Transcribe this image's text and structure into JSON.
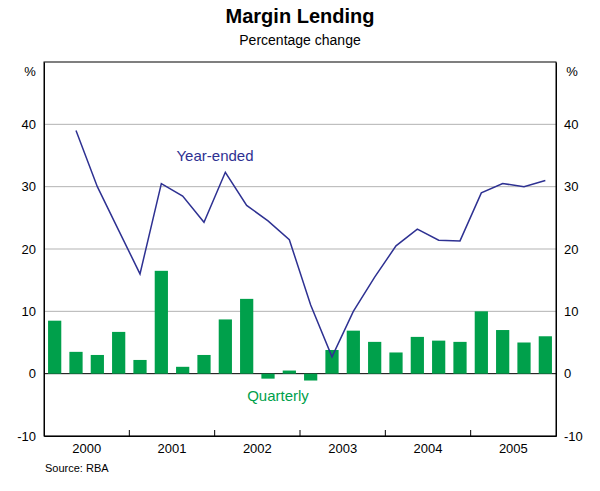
{
  "chart_data": {
    "type": "bar",
    "title": "Margin Lending",
    "subtitle": "Percentage change",
    "y_label": "%",
    "y2_label": "%",
    "source": "Source: RBA",
    "categories": [
      null,
      "2000",
      null,
      null,
      null,
      "2001",
      null,
      null,
      null,
      "2002",
      null,
      null,
      null,
      "2003",
      null,
      null,
      null,
      "2004",
      null,
      null,
      null,
      "2005",
      null,
      null
    ],
    "series": [
      {
        "name": "Year-ended",
        "type": "line",
        "color": "#2e3192",
        "values": [
          null,
          39,
          30,
          23,
          16,
          30.5,
          28.5,
          24.3,
          32.3,
          27,
          24.5,
          21.5,
          11,
          2.7,
          10,
          15.5,
          20.5,
          23.2,
          21.4,
          21.3,
          29,
          30.5,
          30,
          31
        ]
      },
      {
        "name": "Quarterly",
        "type": "bar",
        "color": "#00a04b",
        "values": [
          8.5,
          3.5,
          3,
          6.7,
          2.2,
          16.5,
          1.1,
          3,
          8.7,
          12,
          -0.8,
          0.5,
          -1.1,
          3.8,
          6.9,
          5.1,
          3.4,
          5.9,
          5.3,
          5.1,
          10,
          7,
          5,
          6
        ]
      }
    ],
    "ylim": [
      -10,
      50
    ],
    "yticks": [
      -10,
      0,
      10,
      20,
      30,
      40
    ],
    "y2lim": [
      -10,
      50
    ],
    "y2ticks": [
      -10,
      0,
      10,
      20,
      30,
      40
    ],
    "grid": true
  }
}
